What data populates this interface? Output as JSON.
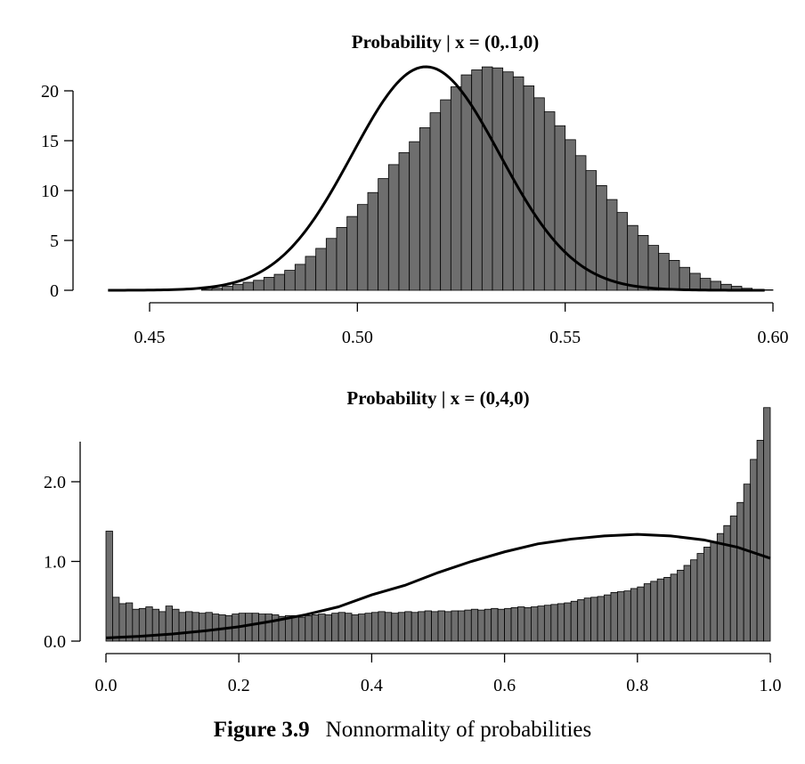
{
  "caption": {
    "number": "Figure 3.9",
    "text": "Nonnormality of probabilities"
  },
  "chart_data": [
    {
      "type": "bar",
      "title": "Probability | x = (0,.1,0)",
      "xlabel": "",
      "ylabel": "",
      "xlim": [
        0.44,
        0.6
      ],
      "ylim": [
        0,
        22.7
      ],
      "xticks": [
        0.45,
        0.5,
        0.55,
        0.6
      ],
      "xtick_labels": [
        "0.45",
        "0.50",
        "0.55",
        "0.60"
      ],
      "yticks": [
        0,
        5,
        10,
        15,
        20
      ],
      "ytick_labels": [
        "0",
        "5",
        "10",
        "15",
        "20"
      ],
      "bin_start": 0.4625,
      "bin_width": 0.0025,
      "values": [
        0.1,
        0.2,
        0.4,
        0.6,
        0.8,
        1.0,
        1.3,
        1.6,
        2.0,
        2.6,
        3.4,
        4.2,
        5.2,
        6.3,
        7.4,
        8.6,
        9.8,
        11.2,
        12.6,
        13.8,
        14.9,
        16.3,
        17.8,
        19.1,
        20.4,
        21.6,
        22.1,
        22.4,
        22.3,
        21.9,
        21.4,
        20.5,
        19.3,
        17.9,
        16.5,
        15.1,
        13.5,
        12.0,
        10.5,
        9.1,
        7.8,
        6.5,
        5.5,
        4.5,
        3.7,
        3.0,
        2.3,
        1.7,
        1.2,
        0.9,
        0.6,
        0.4,
        0.2,
        0.1,
        0.05
      ],
      "curve": {
        "type": "normal-density",
        "mean": 0.5165,
        "sd": 0.0178,
        "range": [
          0.44,
          0.598
        ]
      }
    },
    {
      "type": "bar",
      "title": "Probability | x = (0,4,0)",
      "xlabel": "",
      "ylabel": "",
      "xlim": [
        0,
        1
      ],
      "ylim": [
        0,
        2.9
      ],
      "xticks": [
        0,
        0.2,
        0.4,
        0.6,
        0.8,
        1.0
      ],
      "xtick_labels": [
        "0.0",
        "0.2",
        "0.4",
        "0.6",
        "0.8",
        "1.0"
      ],
      "yticks": [
        0,
        1,
        2
      ],
      "ytick_labels": [
        "0.0",
        "1.0",
        "2.0"
      ],
      "bin_start": 0.0,
      "bin_width": 0.01,
      "values": [
        1.38,
        0.55,
        0.47,
        0.48,
        0.4,
        0.41,
        0.43,
        0.4,
        0.37,
        0.44,
        0.4,
        0.36,
        0.37,
        0.36,
        0.35,
        0.36,
        0.34,
        0.33,
        0.32,
        0.34,
        0.35,
        0.35,
        0.35,
        0.34,
        0.34,
        0.33,
        0.31,
        0.32,
        0.32,
        0.3,
        0.32,
        0.33,
        0.34,
        0.33,
        0.35,
        0.36,
        0.35,
        0.33,
        0.34,
        0.35,
        0.36,
        0.37,
        0.36,
        0.35,
        0.36,
        0.37,
        0.36,
        0.37,
        0.38,
        0.37,
        0.38,
        0.37,
        0.38,
        0.38,
        0.39,
        0.4,
        0.39,
        0.4,
        0.41,
        0.4,
        0.41,
        0.42,
        0.43,
        0.42,
        0.43,
        0.44,
        0.45,
        0.46,
        0.47,
        0.48,
        0.5,
        0.52,
        0.54,
        0.55,
        0.56,
        0.58,
        0.61,
        0.62,
        0.63,
        0.66,
        0.68,
        0.72,
        0.75,
        0.78,
        0.8,
        0.84,
        0.89,
        0.95,
        1.02,
        1.1,
        1.18,
        1.25,
        1.35,
        1.45,
        1.57,
        1.74,
        1.97,
        2.28,
        2.52,
        2.93
      ],
      "curve": {
        "type": "density",
        "x": [
          0.0,
          0.05,
          0.1,
          0.15,
          0.2,
          0.25,
          0.3,
          0.35,
          0.4,
          0.45,
          0.5,
          0.55,
          0.6,
          0.65,
          0.7,
          0.75,
          0.8,
          0.85,
          0.9,
          0.95,
          1.0
        ],
        "y": [
          0.04,
          0.06,
          0.09,
          0.13,
          0.18,
          0.25,
          0.33,
          0.43,
          0.58,
          0.7,
          0.86,
          1.0,
          1.12,
          1.22,
          1.28,
          1.32,
          1.34,
          1.32,
          1.27,
          1.18,
          1.04
        ]
      }
    }
  ]
}
